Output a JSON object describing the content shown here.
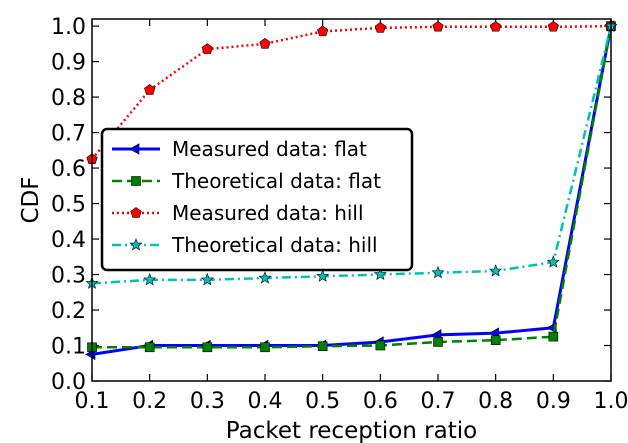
{
  "chart_data": {
    "type": "line",
    "xlabel": "Packet reception ratio",
    "ylabel": "CDF",
    "xlim": [
      0.1,
      1.0
    ],
    "ylim": [
      0.0,
      1.02
    ],
    "xticks": [
      "0.1",
      "0.2",
      "0.3",
      "0.4",
      "0.5",
      "0.6",
      "0.7",
      "0.8",
      "0.9",
      "1.0"
    ],
    "yticks": [
      "0.0",
      "0.1",
      "0.2",
      "0.3",
      "0.4",
      "0.5",
      "0.6",
      "0.7",
      "0.8",
      "0.9",
      "1.0"
    ],
    "grid": false,
    "legend_position": "center-left",
    "series": [
      {
        "name": "Measured data: flat",
        "color": "#0000ff",
        "marker": "triangle-left",
        "line_style": "solid",
        "x": [
          0.1,
          0.2,
          0.3,
          0.4,
          0.5,
          0.6,
          0.7,
          0.8,
          0.9,
          1.0
        ],
        "y": [
          0.075,
          0.1,
          0.1,
          0.1,
          0.1,
          0.11,
          0.13,
          0.135,
          0.15,
          1.0
        ]
      },
      {
        "name": "Theoretical data: flat",
        "color": "#008000",
        "marker": "square",
        "line_style": "dashed",
        "x": [
          0.1,
          0.2,
          0.3,
          0.4,
          0.5,
          0.6,
          0.7,
          0.8,
          0.9,
          1.0
        ],
        "y": [
          0.095,
          0.095,
          0.095,
          0.095,
          0.098,
          0.1,
          0.11,
          0.115,
          0.125,
          1.0
        ]
      },
      {
        "name": "Measured data: hill",
        "color": "#ff0000",
        "marker": "pentagon",
        "line_style": "dotted",
        "x": [
          0.1,
          0.2,
          0.3,
          0.4,
          0.5,
          0.6,
          0.7,
          0.8,
          0.9,
          1.0
        ],
        "y": [
          0.625,
          0.82,
          0.935,
          0.95,
          0.985,
          0.995,
          0.998,
          0.998,
          0.998,
          1.0
        ]
      },
      {
        "name": "Theoretical data: hill",
        "color": "#00bfbf",
        "marker": "star",
        "line_style": "dashdot",
        "x": [
          0.1,
          0.2,
          0.3,
          0.4,
          0.5,
          0.6,
          0.7,
          0.8,
          0.9,
          1.0
        ],
        "y": [
          0.275,
          0.285,
          0.285,
          0.29,
          0.295,
          0.3,
          0.305,
          0.31,
          0.335,
          1.0
        ]
      }
    ]
  }
}
